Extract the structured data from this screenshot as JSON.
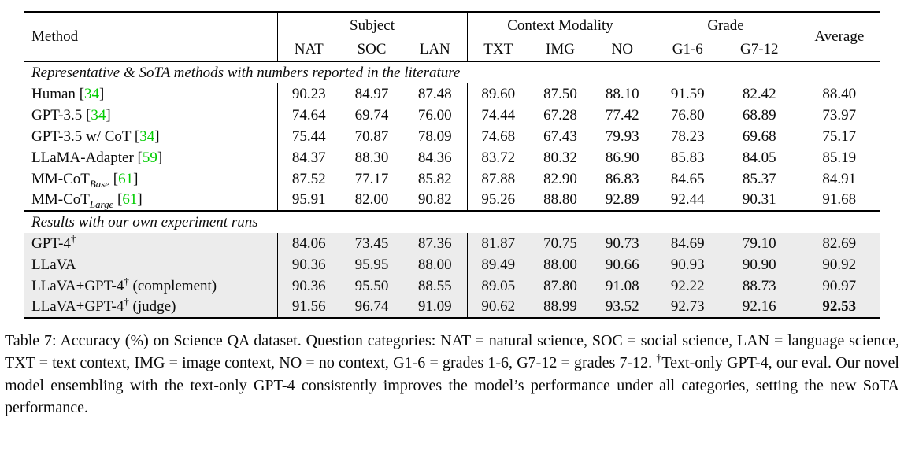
{
  "table": {
    "header": {
      "method": "Method",
      "average": "Average",
      "groups": [
        {
          "label": "Subject",
          "cols": [
            "NAT",
            "SOC",
            "LAN"
          ]
        },
        {
          "label": "Context Modality",
          "cols": [
            "TXT",
            "IMG",
            "NO"
          ]
        },
        {
          "label": "Grade",
          "cols": [
            "G1-6",
            "G7-12"
          ]
        }
      ]
    },
    "sections": [
      {
        "title": "Representative & SoTA methods with numbers reported in the literature",
        "shaded": false,
        "rows": [
          {
            "method": [
              {
                "k": "t",
                "v": "Human "
              },
              {
                "k": "cite",
                "v": "34"
              }
            ],
            "values": [
              "90.23",
              "84.97",
              "87.48",
              "89.60",
              "87.50",
              "88.10",
              "91.59",
              "82.42",
              "88.40"
            ]
          },
          {
            "method": [
              {
                "k": "t",
                "v": "GPT-3.5 "
              },
              {
                "k": "cite",
                "v": "34"
              }
            ],
            "values": [
              "74.64",
              "69.74",
              "76.00",
              "74.44",
              "67.28",
              "77.42",
              "76.80",
              "68.89",
              "73.97"
            ]
          },
          {
            "method": [
              {
                "k": "t",
                "v": "GPT-3.5 w/ CoT "
              },
              {
                "k": "cite",
                "v": "34"
              }
            ],
            "values": [
              "75.44",
              "70.87",
              "78.09",
              "74.68",
              "67.43",
              "79.93",
              "78.23",
              "69.68",
              "75.17"
            ]
          },
          {
            "method": [
              {
                "k": "t",
                "v": "LLaMA-Adapter "
              },
              {
                "k": "cite",
                "v": "59"
              }
            ],
            "values": [
              "84.37",
              "88.30",
              "84.36",
              "83.72",
              "80.32",
              "86.90",
              "85.83",
              "84.05",
              "85.19"
            ]
          },
          {
            "method": [
              {
                "k": "t",
                "v": "MM-CoT"
              },
              {
                "k": "sub",
                "v": "Base"
              },
              {
                "k": "t",
                "v": " "
              },
              {
                "k": "cite",
                "v": "61"
              }
            ],
            "values": [
              "87.52",
              "77.17",
              "85.82",
              "87.88",
              "82.90",
              "86.83",
              "84.65",
              "85.37",
              "84.91"
            ]
          },
          {
            "method": [
              {
                "k": "t",
                "v": "MM-CoT"
              },
              {
                "k": "sub",
                "v": "Large"
              },
              {
                "k": "t",
                "v": " "
              },
              {
                "k": "cite",
                "v": "61"
              }
            ],
            "values": [
              "95.91",
              "82.00",
              "90.82",
              "95.26",
              "88.80",
              "92.89",
              "92.44",
              "90.31",
              "91.68"
            ]
          }
        ]
      },
      {
        "title": "Results with our own experiment runs",
        "shaded": true,
        "rows": [
          {
            "method": [
              {
                "k": "t",
                "v": "GPT-4"
              },
              {
                "k": "sup",
                "v": "†"
              }
            ],
            "values": [
              "84.06",
              "73.45",
              "87.36",
              "81.87",
              "70.75",
              "90.73",
              "84.69",
              "79.10",
              "82.69"
            ]
          },
          {
            "method": [
              {
                "k": "t",
                "v": "LLaVA"
              }
            ],
            "values": [
              "90.36",
              "95.95",
              "88.00",
              "89.49",
              "88.00",
              "90.66",
              "90.93",
              "90.90",
              "90.92"
            ]
          },
          {
            "method": [
              {
                "k": "t",
                "v": "LLaVA+GPT-4"
              },
              {
                "k": "sup",
                "v": "†"
              },
              {
                "k": "t",
                "v": " (complement)"
              }
            ],
            "values": [
              "90.36",
              "95.50",
              "88.55",
              "89.05",
              "87.80",
              "91.08",
              "92.22",
              "88.73",
              "90.97"
            ]
          },
          {
            "method": [
              {
                "k": "t",
                "v": "LLaVA+GPT-4"
              },
              {
                "k": "sup",
                "v": "†"
              },
              {
                "k": "t",
                "v": " (judge)"
              }
            ],
            "values": [
              "91.56",
              "96.74",
              "91.09",
              "90.62",
              "88.99",
              "93.52",
              "92.73",
              "92.16",
              "92.53"
            ],
            "bold_avg": true
          }
        ]
      }
    ]
  },
  "caption": {
    "parts": [
      {
        "k": "t",
        "v": "Table 7: Accuracy (%) on Science QA dataset. Question categories: NAT = natural science, SOC = social science, LAN = language science, TXT = text context, IMG = image context, NO = no context, G1-6 = grades 1-6, G7-12 = grades 7-12. "
      },
      {
        "k": "sup",
        "v": "†"
      },
      {
        "k": "t",
        "v": "Text-only GPT-4, our eval. Our novel model ensembling with the text-only GPT-4 consistently improves the model’s performance under all categories, setting the new SoTA performance."
      }
    ]
  },
  "colors": {
    "citation_green": "#00cc00",
    "shaded_row_bg": "#ececec",
    "rule_black": "#000000"
  }
}
